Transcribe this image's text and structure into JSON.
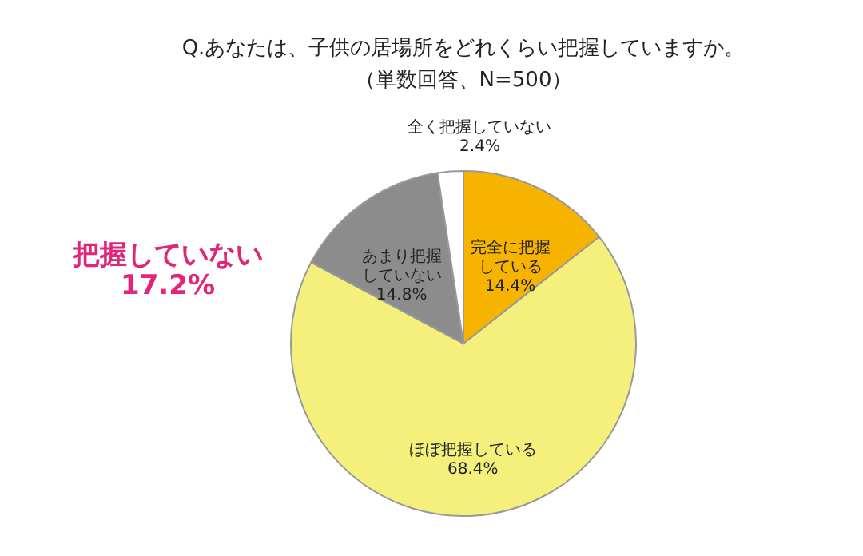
{
  "chart_data": {
    "type": "pie",
    "title": "Q.あなたは、子供の居場所をどれくらい把握していますか。",
    "subtitle": "（単数回答、N=500）",
    "categories": [
      "完全に把握している",
      "ほぼ把握している",
      "あまり把握していない",
      "全く把握していない"
    ],
    "values": [
      14.4,
      68.4,
      14.8,
      2.4
    ],
    "value_labels": [
      "14.4%",
      "68.4%",
      "14.8%",
      "2.4%"
    ],
    "colors": [
      "#f6b400",
      "#f5f07c",
      "#8c8c8c",
      "#ffffff"
    ],
    "annotations": [
      "把握していない\n17.2%"
    ]
  }
}
